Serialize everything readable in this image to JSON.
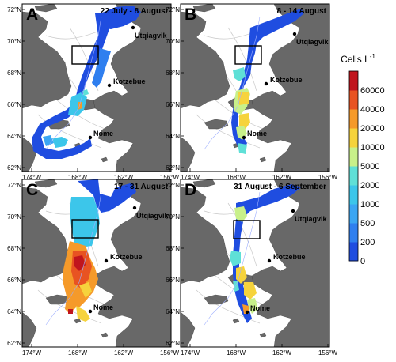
{
  "panels": [
    {
      "letter": "A",
      "date": "22 July - 8 August"
    },
    {
      "letter": "B",
      "date": "8 - 14 August"
    },
    {
      "letter": "C",
      "date": "17 - 31 August"
    },
    {
      "letter": "D",
      "date": "31 August - 6 September"
    }
  ],
  "places": {
    "utqiagvik": "Utqiagvik",
    "kotzebue": "Kotzebue",
    "nome": "Nome"
  },
  "lat_ticks": [
    "72°N",
    "70°N",
    "68°N",
    "66°N",
    "64°N",
    "62°N"
  ],
  "lon_ticks": [
    "174°W",
    "168°W",
    "162°W",
    "156°W"
  ],
  "colorbar": {
    "title": "Cells L",
    "title_sup": "-1",
    "levels": [
      "0",
      "200",
      "500",
      "1000",
      "2000",
      "5000",
      "10000",
      "20000",
      "40000",
      "60000"
    ],
    "colors": [
      "#1f4de0",
      "#2f7fef",
      "#3ba6f3",
      "#3cc6ea",
      "#5fe0d7",
      "#c8f08a",
      "#f6d33c",
      "#f59a2a",
      "#e85322",
      "#c0151d"
    ]
  },
  "colors": {
    "land": "#686868",
    "sea": "#ffffff",
    "box": "#000000"
  }
}
